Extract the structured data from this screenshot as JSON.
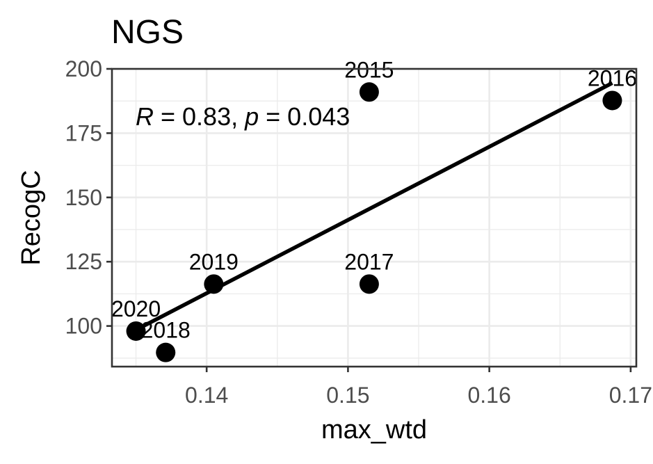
{
  "chart_data": {
    "type": "scatter",
    "title": "NGS",
    "xlabel": "max_wtd",
    "ylabel": "RecogC",
    "xlim": [
      0.1333,
      0.1704
    ],
    "ylim": [
      84.2,
      200.0
    ],
    "x_ticks": [
      0.14,
      0.15,
      0.16,
      0.17
    ],
    "x_tick_labels": [
      "0.14",
      "0.15",
      "0.16",
      "0.17"
    ],
    "y_ticks": [
      100,
      125,
      150,
      175,
      200
    ],
    "y_tick_labels": [
      "100",
      "125",
      "150",
      "175",
      "200"
    ],
    "grid": true,
    "points": [
      {
        "x": 0.1515,
        "y": 191.0,
        "label": "2015"
      },
      {
        "x": 0.1687,
        "y": 187.7,
        "label": "2016"
      },
      {
        "x": 0.1515,
        "y": 116.3,
        "label": "2017"
      },
      {
        "x": 0.1371,
        "y": 89.7,
        "label": "2018"
      },
      {
        "x": 0.1405,
        "y": 116.3,
        "label": "2019"
      },
      {
        "x": 0.135,
        "y": 98.0,
        "label": "2020"
      }
    ],
    "fit_line": {
      "x": [
        0.135,
        0.1687
      ],
      "y": [
        98.5,
        194.5
      ]
    },
    "annotation": {
      "r_symbol": "R",
      "r_text": " = 0.83, ",
      "p_symbol": "p",
      "p_text": " = 0.043"
    },
    "colors": {
      "points": "#000000",
      "line": "#000000",
      "grid": "#ebebeb",
      "panel_border": "#333333",
      "tick_text": "#4d4d4d"
    }
  }
}
